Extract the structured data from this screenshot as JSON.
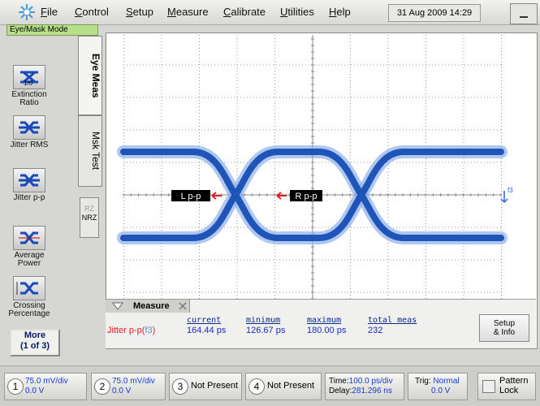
{
  "menu": {
    "items": [
      "File",
      "Control",
      "Setup",
      "Measure",
      "Calibrate",
      "Utilities",
      "Help"
    ],
    "datetime": "31 Aug 2009 14:29"
  },
  "mode_tab": "Eye/Mask Mode",
  "side_buttons": [
    {
      "icon_text": "1/0",
      "label": [
        "Extinction",
        "Ratio"
      ]
    },
    {
      "label": [
        "Jitter RMS"
      ]
    },
    {
      "label": [
        "Jitter p-p"
      ]
    },
    {
      "label": [
        "Average",
        "Power"
      ]
    },
    {
      "label": [
        "Crossing",
        "Percentage"
      ]
    }
  ],
  "more_button": [
    "More",
    "(1 of 3)"
  ],
  "vertical_tabs": [
    "Eye Meas",
    "Msk Test"
  ],
  "rz_nrz": [
    "RZ",
    "NRZ"
  ],
  "eye_markers": {
    "left": "L p-p",
    "right": "R p-p",
    "ref": "f3"
  },
  "measure_panel": {
    "title": "Measure",
    "headers": [
      "current",
      "minimum",
      "maximum",
      "total meas"
    ],
    "row": {
      "name": "Jitter p-p(",
      "source": "f3",
      "close": ")",
      "values": [
        "164.44 ps",
        "126.67 ps",
        "180.00 ps",
        "232"
      ]
    },
    "button": [
      "Setup",
      "& Info"
    ]
  },
  "status_bar": {
    "channels": [
      {
        "number": "1",
        "scale": "75.0 mV/div",
        "offset": "0.0 V"
      },
      {
        "number": "2",
        "scale": "75.0 mV/div",
        "offset": "0.0 V"
      },
      {
        "number": "3",
        "status": "Not Present"
      },
      {
        "number": "4",
        "status": "Not Present"
      }
    ],
    "time": {
      "label": "Time:",
      "value": "100.0 ps/div",
      "delay_label": "Delay:",
      "delay_value": "281.296 ns"
    },
    "trigger": {
      "label": "Trig:",
      "mode": "Normal",
      "level": "0.0 V"
    },
    "pattern_lock": [
      "Pattern",
      "Lock"
    ]
  }
}
